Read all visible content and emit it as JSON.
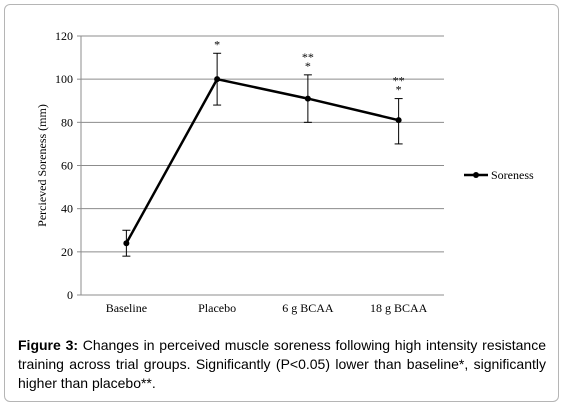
{
  "chart_data": {
    "type": "line",
    "categories": [
      "Baseline",
      "Placebo",
      "6 g BCAA",
      "18 g BCAA"
    ],
    "series": [
      {
        "name": "Soreness",
        "values": [
          24,
          100,
          91,
          81
        ],
        "error_upper": [
          30,
          112,
          102,
          91
        ],
        "error_lower": [
          18,
          88,
          80,
          70
        ],
        "annotations": [
          "",
          "*",
          "**\n*",
          "**\n*"
        ],
        "color": "#000000"
      }
    ],
    "ylabel": "Percieved Soreness (mm)",
    "xlabel": "",
    "ylim": [
      0,
      120
    ],
    "yticks": [
      0,
      20,
      40,
      60,
      80,
      100,
      120
    ],
    "grid": true,
    "legend_position": "right"
  },
  "caption": {
    "label": "Figure 3:",
    "text": " Changes in perceived muscle soreness following high intensity resistance training across trial groups. Significantly (P<0.05) lower than baseline*, significantly higher than placebo**."
  }
}
